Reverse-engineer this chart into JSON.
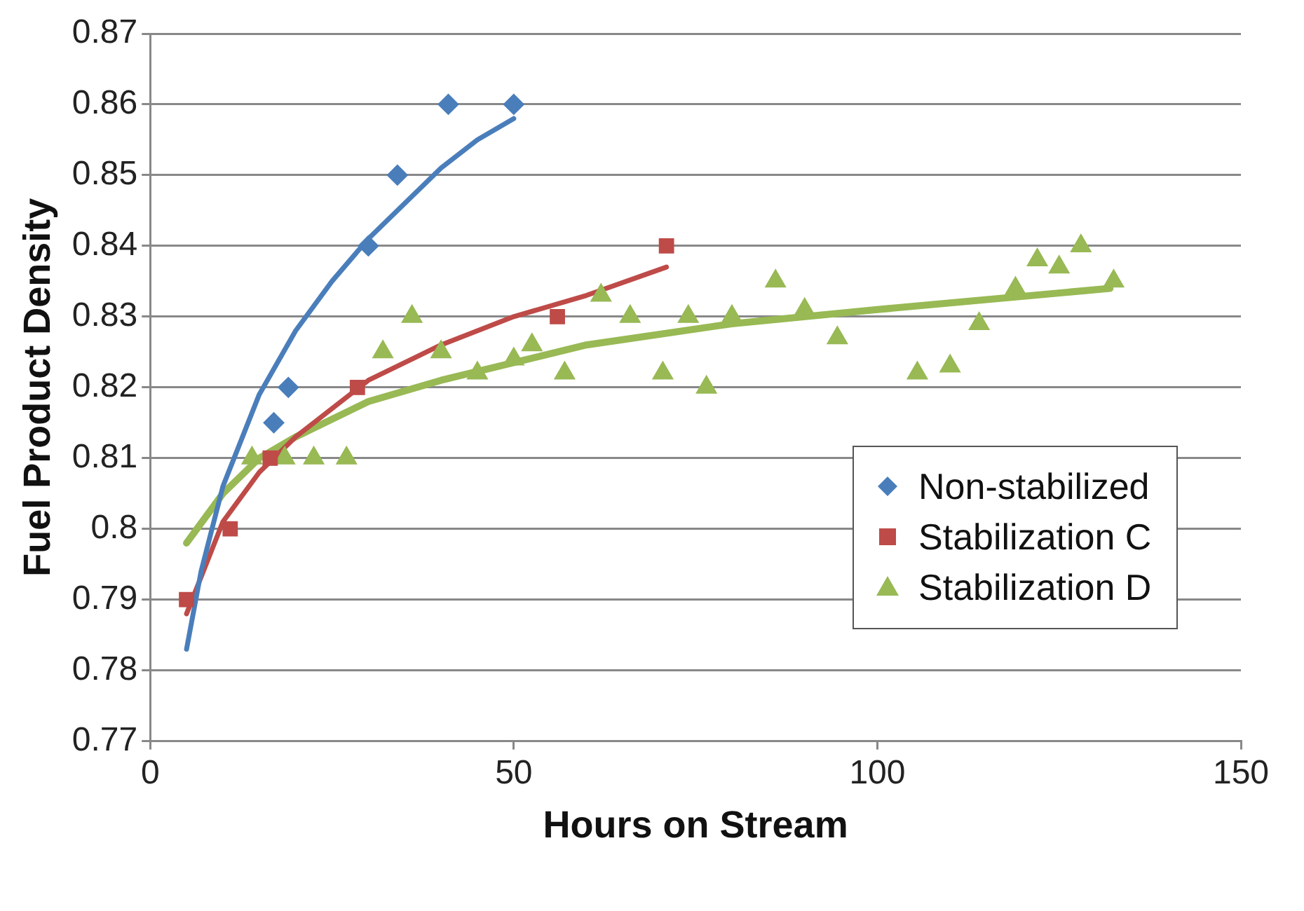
{
  "chart_data": {
    "type": "scatter",
    "xlabel": "Hours on Stream",
    "ylabel": "Fuel Product Density",
    "xlim": [
      0,
      150
    ],
    "xticks": [
      0,
      50,
      100,
      150
    ],
    "ylim": [
      0.77,
      0.87
    ],
    "yticks": [
      0.77,
      0.78,
      0.79,
      0.8,
      0.81,
      0.82,
      0.83,
      0.84,
      0.85,
      0.86,
      0.87
    ],
    "grid": "y",
    "legend": "bottom right",
    "series": [
      {
        "name": "Non-stabilized",
        "color": "#4a7ebb",
        "marker": "diamond",
        "x": [
          17,
          19,
          30,
          34,
          41,
          50
        ],
        "values": [
          0.815,
          0.82,
          0.84,
          0.85,
          0.86,
          0.86
        ]
      },
      {
        "name": "Stabilization C",
        "color": "#be4b48",
        "marker": "square",
        "x": [
          5,
          11,
          16.5,
          28.5,
          56,
          71
        ],
        "values": [
          0.79,
          0.8,
          0.81,
          0.82,
          0.83,
          0.84
        ]
      },
      {
        "name": "Stabilization D",
        "color": "#98b954",
        "marker": "triangle",
        "x": [
          14,
          18.5,
          22.5,
          27,
          32,
          36,
          40,
          45,
          50,
          52.5,
          57,
          62,
          66,
          70.5,
          74,
          76.5,
          80,
          86,
          90,
          94.5,
          105.5,
          110,
          114,
          119,
          122,
          125,
          128,
          132.5
        ],
        "values": [
          0.81,
          0.81,
          0.81,
          0.81,
          0.825,
          0.83,
          0.825,
          0.822,
          0.824,
          0.826,
          0.822,
          0.833,
          0.83,
          0.822,
          0.83,
          0.82,
          0.83,
          0.835,
          0.831,
          0.827,
          0.822,
          0.823,
          0.829,
          0.834,
          0.838,
          0.837,
          0.84,
          0.835
        ]
      },
      {
        "type": "line",
        "color": "#4a7ebb",
        "marker": "none",
        "x": [
          5,
          7,
          10,
          15,
          20,
          25,
          30,
          35,
          40,
          45,
          50
        ],
        "values": [
          0.783,
          0.794,
          0.806,
          0.819,
          0.828,
          0.835,
          0.841,
          0.846,
          0.851,
          0.855,
          0.858
        ]
      },
      {
        "type": "line",
        "color": "#be4b48",
        "marker": "none",
        "x": [
          5,
          10,
          15,
          20,
          30,
          40,
          50,
          60,
          71
        ],
        "values": [
          0.788,
          0.801,
          0.808,
          0.813,
          0.821,
          0.826,
          0.83,
          0.833,
          0.837
        ]
      },
      {
        "type": "line",
        "color": "#98b954",
        "marker": "none",
        "x": [
          5,
          10,
          15,
          20,
          30,
          40,
          60,
          80,
          100,
          132
        ],
        "values": [
          0.798,
          0.805,
          0.81,
          0.813,
          0.818,
          0.821,
          0.826,
          0.829,
          0.831,
          0.834
        ]
      }
    ]
  }
}
